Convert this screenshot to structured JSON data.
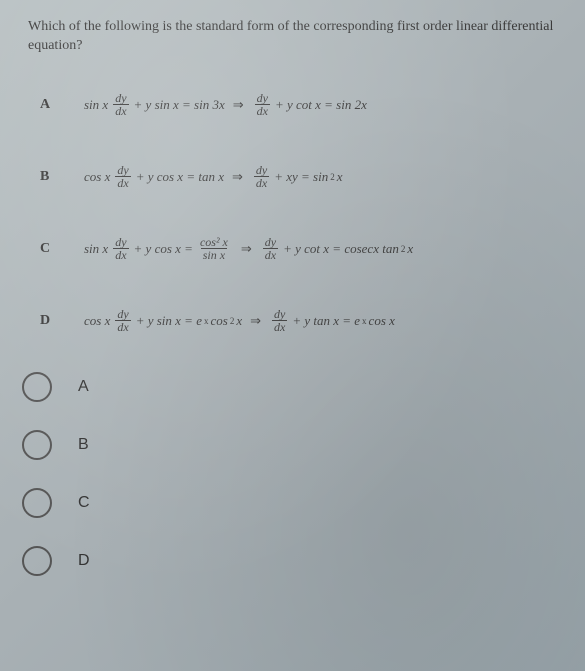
{
  "question": "Which of the following is the standard form of the corresponding first order linear differential equation?",
  "choices": {
    "A": {
      "label": "A",
      "lhs_pre": "sin x",
      "lhs_mid": "+ y sin x = sin 3x",
      "rhs_mid": "+ y cot x = sin 2x"
    },
    "B": {
      "label": "B",
      "lhs_pre": "cos x",
      "lhs_mid": "+ y cos x = tan x",
      "rhs_mid": "+ xy = sin",
      "rhs_sup": "2",
      "rhs_post": " x"
    },
    "C": {
      "label": "C",
      "lhs_pre": "sin x",
      "lhs_mid": "+ y cos x =",
      "frac2_num": "cos² x",
      "frac2_den": "sin x",
      "rhs_mid": "+ y cot x = cosecx tan",
      "rhs_sup": "2",
      "rhs_post": " x"
    },
    "D": {
      "label": "D",
      "lhs_pre": "cos x",
      "lhs_mid_a": "+ y sin x = e",
      "lhs_sup": "x",
      "lhs_mid_b": " cos",
      "lhs_sup2": "2",
      "lhs_mid_c": " x",
      "rhs_mid_a": "+ y tan x = e",
      "rhs_sup": "x",
      "rhs_mid_b": " cos x"
    }
  },
  "dydx": {
    "num": "dy",
    "den": "dx"
  },
  "arrow": "⇒",
  "answers": [
    "A",
    "B",
    "C",
    "D"
  ]
}
